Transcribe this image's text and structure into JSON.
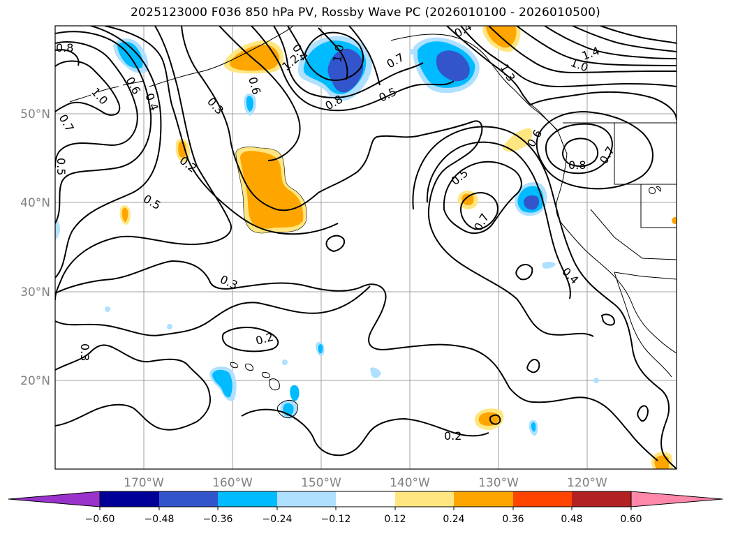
{
  "title": "2025123000 F036 850 hPa PV, Rossby Wave PC (2026010100 - 2026010500)",
  "map": {
    "lat_labels": [
      "50°N",
      "40°N",
      "30°N",
      "20°N"
    ],
    "lon_labels": [
      "170°W",
      "160°W",
      "150°W",
      "140°W",
      "130°W",
      "120°W"
    ],
    "contour_labels": [
      "0.8",
      "1.0",
      "0.6",
      "0.4",
      "0.7",
      "0.5",
      "0.3",
      "0.2",
      "0.6",
      "0.4",
      "1.2",
      "1.0",
      "0.8",
      "0.7",
      "0.5",
      "0.4",
      "1.3",
      "0.6",
      "0.8",
      "0.7",
      "0.5",
      "0.5",
      "0.7",
      "0.3",
      "0.2",
      "0.3",
      "0.4",
      "0.2",
      "1.4",
      "1.0"
    ],
    "colors": {
      "neg_060": "#9933cc",
      "neg_048": "#000099",
      "neg_036": "#3355cc",
      "neg_024": "#00bbff",
      "neg_012": "#b0e0ff",
      "neutral": "#ffffff",
      "pos_012": "#ffe680",
      "pos_024": "#ffa500",
      "pos_036": "#ff4400",
      "pos_048": "#b22222",
      "pos_060": "#ff88aa"
    }
  },
  "colorbar": {
    "ticks": [
      "−0.60",
      "−0.48",
      "−0.36",
      "−0.24",
      "−0.12",
      "0.12",
      "0.24",
      "0.36",
      "0.48",
      "0.60"
    ],
    "colors": [
      "#9933cc",
      "#000099",
      "#3355cc",
      "#00bbff",
      "#b0e0ff",
      "#ffffff",
      "#ffe680",
      "#ffa500",
      "#ff4400",
      "#b22222",
      "#ff88aa",
      "#ff88aa"
    ]
  }
}
